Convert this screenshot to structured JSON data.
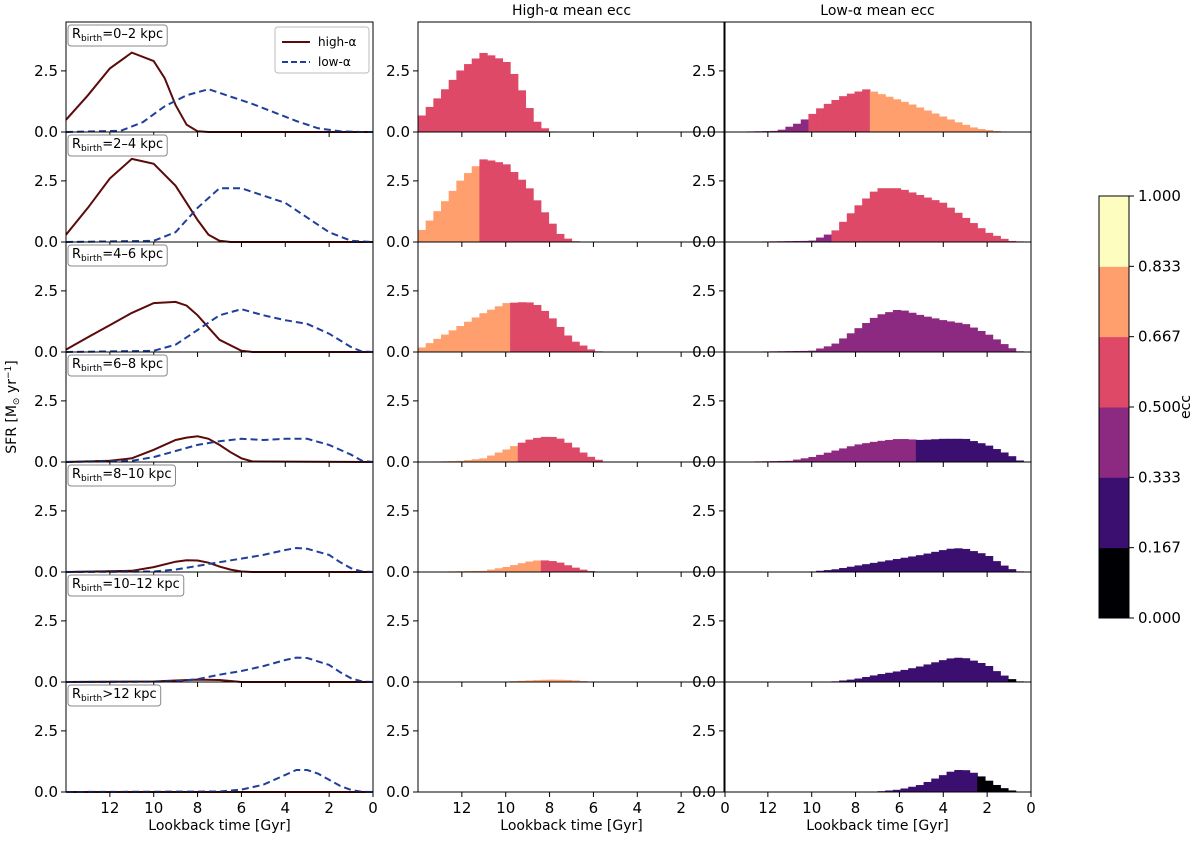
{
  "figure": {
    "col_titles": [
      "",
      "High-α mean ecc",
      "Low-α mean ecc"
    ],
    "x_label": "Lookback time [Gyr]",
    "y_label_main": "SFR [M",
    "y_label_sun": "⊙",
    "y_label_unit": " yr",
    "y_label_exp": "−1",
    "y_label_close": "]",
    "rbirth_prefix": "R",
    "rbirth_sub": "birth",
    "legend": [
      "high-α",
      "low-α"
    ],
    "colorbar_label": "ecc",
    "colorbar_ticks": [
      "0.000",
      "0.167",
      "0.333",
      "0.500",
      "0.667",
      "0.833",
      "1.000"
    ]
  },
  "chart_data": {
    "type": "line+bar",
    "x_range": [
      14,
      0
    ],
    "y_range": [
      0,
      4.5
    ],
    "x_ticks": [
      12,
      10,
      8,
      6,
      4,
      2,
      0
    ],
    "y_ticks": [
      0.0,
      2.5
    ],
    "x_tick_labels": [
      "12",
      "10",
      "8",
      "6",
      "4",
      "2",
      "0"
    ],
    "y_tick_labels": [
      "0.0",
      "2.5"
    ],
    "colormap": "magma",
    "ecc_bins": [
      0.0,
      0.167,
      0.333,
      0.5,
      0.667,
      0.833,
      1.0
    ],
    "bin_colors": [
      "#000004",
      "#3b0f70",
      "#8c2981",
      "#de4968",
      "#fe9f6d",
      "#fcfdbf"
    ],
    "rows": [
      {
        "rbirth": "=0–2 kpc",
        "high": {
          "x": [
            14,
            13,
            12,
            11,
            10,
            9.5,
            9,
            8.5,
            8,
            7.5,
            0
          ],
          "y": [
            0.5,
            1.5,
            2.6,
            3.25,
            2.9,
            2.2,
            1.1,
            0.3,
            0.03,
            0,
            0
          ]
        },
        "low": {
          "x": [
            14,
            11.5,
            10.5,
            9.5,
            8.5,
            7.5,
            6.5,
            5.5,
            4.5,
            3.5,
            2.5,
            1.5,
            0.5,
            0
          ],
          "y": [
            0,
            0.05,
            0.4,
            1.05,
            1.5,
            1.75,
            1.45,
            1.15,
            0.8,
            0.45,
            0.15,
            0.03,
            0,
            0
          ]
        },
        "high_segments": [
          {
            "from": 14,
            "to": 0,
            "bin": 3
          }
        ],
        "low_segments": [
          {
            "from": 14,
            "to": 10.2,
            "bin": 2
          },
          {
            "from": 10.2,
            "to": 7.2,
            "bin": 3
          },
          {
            "from": 7.2,
            "to": 0,
            "bin": 4
          }
        ]
      },
      {
        "rbirth": "=2–4 kpc",
        "high": {
          "x": [
            14,
            13,
            12,
            11,
            10,
            9,
            8.5,
            8,
            7.5,
            7,
            6.5,
            0
          ],
          "y": [
            0.3,
            1.4,
            2.6,
            3.4,
            3.2,
            2.3,
            1.6,
            0.9,
            0.3,
            0.05,
            0,
            0
          ]
        },
        "low": {
          "x": [
            14,
            10,
            9,
            8,
            7,
            6,
            5,
            4,
            3,
            2,
            1,
            0
          ],
          "y": [
            0,
            0.05,
            0.4,
            1.4,
            2.2,
            2.2,
            1.9,
            1.6,
            1.0,
            0.4,
            0.05,
            0
          ]
        },
        "high_segments": [
          {
            "from": 14,
            "to": 11.2,
            "bin": 4
          },
          {
            "from": 11.2,
            "to": 0,
            "bin": 3
          }
        ],
        "low_segments": [
          {
            "from": 14,
            "to": 9.8,
            "bin": 2
          },
          {
            "from": 9.8,
            "to": 9.0,
            "bin": 2
          },
          {
            "from": 9.0,
            "to": 0,
            "bin": 3
          }
        ]
      },
      {
        "rbirth": "=4–6 kpc",
        "high": {
          "x": [
            14,
            13,
            12,
            11,
            10,
            9,
            8.5,
            8,
            7.5,
            7,
            6,
            5.5,
            0
          ],
          "y": [
            0.1,
            0.6,
            1.1,
            1.6,
            2.0,
            2.05,
            1.9,
            1.5,
            1.0,
            0.5,
            0.05,
            0,
            0
          ]
        },
        "low": {
          "x": [
            14,
            10,
            9,
            8,
            7,
            6,
            5,
            4,
            3,
            2,
            1,
            0.5,
            0
          ],
          "y": [
            0,
            0.05,
            0.3,
            0.9,
            1.5,
            1.75,
            1.5,
            1.3,
            1.15,
            0.75,
            0.2,
            0.02,
            0
          ]
        },
        "high_segments": [
          {
            "from": 14,
            "to": 9.8,
            "bin": 4
          },
          {
            "from": 9.8,
            "to": 0,
            "bin": 3
          }
        ],
        "low_segments": [
          {
            "from": 14,
            "to": 0,
            "bin": 2
          }
        ]
      },
      {
        "rbirth": "=6–8 kpc",
        "high": {
          "x": [
            14,
            12,
            11,
            10,
            9,
            8.5,
            8,
            7.5,
            7,
            6.5,
            6,
            5.5,
            0
          ],
          "y": [
            0,
            0.05,
            0.15,
            0.5,
            0.9,
            1.0,
            1.05,
            0.95,
            0.7,
            0.4,
            0.15,
            0.02,
            0
          ]
        },
        "low": {
          "x": [
            14,
            11,
            10,
            9,
            8,
            7,
            6,
            5,
            4,
            3,
            2,
            1,
            0.5,
            0
          ],
          "y": [
            0,
            0.05,
            0.2,
            0.45,
            0.7,
            0.85,
            0.95,
            0.9,
            0.95,
            0.95,
            0.7,
            0.3,
            0.05,
            0
          ]
        },
        "high_segments": [
          {
            "from": 14,
            "to": 9.6,
            "bin": 4
          },
          {
            "from": 9.6,
            "to": 0,
            "bin": 3
          }
        ],
        "low_segments": [
          {
            "from": 14,
            "to": 5.1,
            "bin": 2
          },
          {
            "from": 5.1,
            "to": 0,
            "bin": 1
          }
        ]
      },
      {
        "rbirth": "=8–10 kpc",
        "high": {
          "x": [
            14,
            11,
            10,
            9,
            8.5,
            8,
            7.5,
            7,
            6.5,
            6,
            5.5,
            0
          ],
          "y": [
            0,
            0.05,
            0.2,
            0.42,
            0.48,
            0.47,
            0.38,
            0.22,
            0.1,
            0.02,
            0,
            0
          ]
        },
        "low": {
          "x": [
            14,
            10,
            9,
            8,
            7,
            6,
            5,
            4,
            3.5,
            3,
            2,
            1.5,
            1,
            0.5,
            0
          ],
          "y": [
            0,
            0.02,
            0.1,
            0.25,
            0.4,
            0.55,
            0.7,
            0.9,
            0.98,
            0.95,
            0.7,
            0.4,
            0.15,
            0.02,
            0
          ]
        },
        "high_segments": [
          {
            "from": 14,
            "to": 8.5,
            "bin": 4
          },
          {
            "from": 8.5,
            "to": 0,
            "bin": 3
          }
        ],
        "low_segments": [
          {
            "from": 14,
            "to": 0,
            "bin": 1
          }
        ]
      },
      {
        "rbirth": "=10–12 kpc",
        "high": {
          "x": [
            14,
            10,
            9,
            8,
            7,
            6.5,
            6,
            0
          ],
          "y": [
            0,
            0.02,
            0.06,
            0.1,
            0.08,
            0.04,
            0,
            0
          ]
        },
        "low": {
          "x": [
            14,
            9,
            8,
            7,
            6,
            5,
            4,
            3.5,
            3,
            2,
            1.5,
            1,
            0.5,
            0
          ],
          "y": [
            0,
            0.02,
            0.12,
            0.3,
            0.45,
            0.65,
            0.9,
            1.0,
            0.98,
            0.7,
            0.4,
            0.15,
            0.02,
            0
          ]
        },
        "high_segments": [
          {
            "from": 14,
            "to": 0,
            "bin": 4
          }
        ],
        "low_segments": [
          {
            "from": 14,
            "to": 1.2,
            "bin": 1
          },
          {
            "from": 1.2,
            "to": 0,
            "bin": 0
          }
        ]
      },
      {
        "rbirth": ">12 kpc",
        "high": {
          "x": [
            14,
            0
          ],
          "y": [
            0,
            0
          ]
        },
        "low": {
          "x": [
            14,
            7,
            6,
            5,
            4,
            3.5,
            3,
            2.5,
            2,
            1.5,
            1,
            0.5,
            0
          ],
          "y": [
            0,
            0.02,
            0.1,
            0.3,
            0.7,
            0.9,
            0.9,
            0.75,
            0.5,
            0.25,
            0.08,
            0.01,
            0
          ]
        },
        "high_segments": [
          {
            "from": 14,
            "to": 0,
            "bin": 4
          }
        ],
        "low_segments": [
          {
            "from": 14,
            "to": 2.3,
            "bin": 1
          },
          {
            "from": 2.3,
            "to": 0,
            "bin": 0
          }
        ]
      }
    ]
  }
}
